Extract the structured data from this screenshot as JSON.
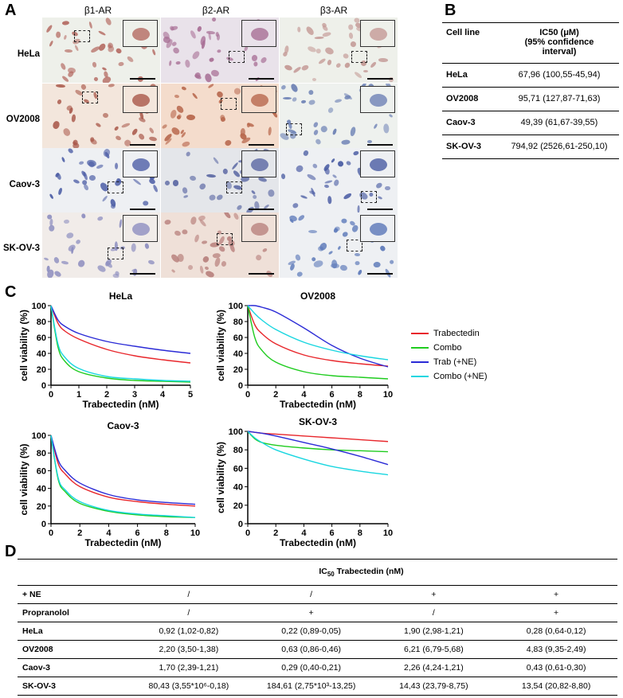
{
  "panelA": {
    "letter": "A",
    "columns": [
      "β1-AR",
      "β2-AR",
      "β3-AR"
    ],
    "rows": [
      "HeLa",
      "OV2008",
      "Caov-3",
      "SK-OV-3"
    ]
  },
  "panelB": {
    "letter": "B",
    "header": {
      "col1": "Cell line",
      "col2_line1": "IC50 (μM)",
      "col2_line2": "(95% confidence",
      "col2_line3": "interval)"
    },
    "rows": [
      {
        "cell": "HeLa",
        "value": "67,96 (100,55-45,94)"
      },
      {
        "cell": "OV2008",
        "value": "95,71 (127,87-71,63)"
      },
      {
        "cell": "Caov-3",
        "value": "49,39 (61,67-39,55)"
      },
      {
        "cell": "SK-OV-3",
        "value": "794,92 (2526,61-250,10)"
      }
    ]
  },
  "panelC": {
    "letter": "C",
    "legend": [
      {
        "label": "Trabectedin",
        "color": "#e8262b"
      },
      {
        "label": "Combo",
        "color": "#1fcc1f"
      },
      {
        "label": "Trab (+NE)",
        "color": "#2b2bd6"
      },
      {
        "label": "Combo (+NE)",
        "color": "#19d6e0"
      }
    ]
  },
  "chart_data": [
    {
      "type": "line",
      "title": "HeLa",
      "xlabel": "Trabectedin (nM)",
      "ylabel": "cell viability (%)",
      "xlim": [
        0,
        5
      ],
      "ylim": [
        0,
        100
      ],
      "xticks": [
        0,
        1,
        2,
        3,
        4,
        5
      ],
      "yticks": [
        0,
        20,
        40,
        60,
        80,
        100
      ],
      "series": [
        {
          "name": "Trabectedin",
          "x": [
            0,
            0.25,
            0.5,
            1,
            2,
            3,
            4,
            5
          ],
          "values": [
            100,
            78,
            68,
            58,
            45,
            37,
            32,
            28
          ]
        },
        {
          "name": "Combo",
          "x": [
            0,
            0.25,
            0.5,
            1,
            2,
            3,
            4,
            5
          ],
          "values": [
            100,
            48,
            30,
            17,
            9,
            6,
            5,
            4
          ]
        },
        {
          "name": "Trab (+NE)",
          "x": [
            0,
            0.25,
            0.5,
            1,
            2,
            3,
            4,
            5
          ],
          "values": [
            100,
            82,
            74,
            65,
            55,
            49,
            44,
            40
          ]
        },
        {
          "name": "Combo (+NE)",
          "x": [
            0,
            0.25,
            0.5,
            1,
            2,
            3,
            4,
            5
          ],
          "values": [
            100,
            52,
            35,
            21,
            11,
            8,
            6,
            5
          ]
        }
      ]
    },
    {
      "type": "line",
      "title": "OV2008",
      "xlabel": "Trabectedin (nM)",
      "ylabel": "cell viability (%)",
      "xlim": [
        0,
        10
      ],
      "ylim": [
        0,
        100
      ],
      "xticks": [
        0,
        2,
        4,
        6,
        8,
        10
      ],
      "yticks": [
        0,
        20,
        40,
        60,
        80,
        100
      ],
      "series": [
        {
          "name": "Trabectedin",
          "x": [
            0,
            0.5,
            1,
            2,
            4,
            6,
            8,
            10
          ],
          "values": [
            100,
            76,
            65,
            52,
            38,
            31,
            27,
            24
          ]
        },
        {
          "name": "Combo",
          "x": [
            0,
            0.5,
            1,
            2,
            4,
            6,
            8,
            10
          ],
          "values": [
            100,
            60,
            44,
            29,
            17,
            12,
            10,
            8
          ]
        },
        {
          "name": "Trab (+NE)",
          "x": [
            0,
            0.5,
            1,
            2,
            4,
            6,
            8,
            10
          ],
          "values": [
            100,
            100,
            98,
            92,
            72,
            50,
            34,
            23
          ]
        },
        {
          "name": "Combo (+NE)",
          "x": [
            0,
            0.5,
            1,
            2,
            4,
            6,
            8,
            10
          ],
          "values": [
            100,
            90,
            82,
            70,
            54,
            44,
            37,
            32
          ]
        }
      ]
    },
    {
      "type": "line",
      "title": "Caov-3",
      "xlabel": "Trabectedin (nM)",
      "ylabel": "cell viability (%)",
      "xlim": [
        0,
        10
      ],
      "ylim": [
        0,
        100
      ],
      "xticks": [
        0,
        2,
        4,
        6,
        8,
        10
      ],
      "yticks": [
        0,
        20,
        40,
        60,
        80,
        100
      ],
      "series": [
        {
          "name": "Trabectedin",
          "x": [
            0,
            0.5,
            1,
            2,
            4,
            6,
            8,
            10
          ],
          "values": [
            100,
            68,
            56,
            42,
            30,
            25,
            22,
            20
          ]
        },
        {
          "name": "Combo",
          "x": [
            0,
            0.5,
            1,
            2,
            4,
            6,
            8,
            10
          ],
          "values": [
            100,
            50,
            36,
            23,
            14,
            10,
            8,
            7
          ]
        },
        {
          "name": "Trab (+NE)",
          "x": [
            0,
            0.5,
            1,
            2,
            4,
            6,
            8,
            10
          ],
          "values": [
            100,
            72,
            60,
            46,
            33,
            27,
            24,
            22
          ]
        },
        {
          "name": "Combo (+NE)",
          "x": [
            0,
            0.5,
            1,
            2,
            4,
            6,
            8,
            10
          ],
          "values": [
            100,
            52,
            38,
            25,
            15,
            11,
            9,
            7
          ]
        }
      ]
    },
    {
      "type": "line",
      "title": "SK-OV-3",
      "xlabel": "Trabectedin (nM)",
      "ylabel": "cell viability (%)",
      "xlim": [
        0,
        10
      ],
      "ylim": [
        0,
        100
      ],
      "xticks": [
        0,
        2,
        4,
        6,
        8,
        10
      ],
      "yticks": [
        0,
        20,
        40,
        60,
        80,
        100
      ],
      "series": [
        {
          "name": "Trabectedin",
          "x": [
            0,
            0.5,
            1,
            2,
            4,
            6,
            8,
            10
          ],
          "values": [
            100,
            99,
            98,
            97,
            95,
            93,
            91,
            89
          ]
        },
        {
          "name": "Combo",
          "x": [
            0,
            0.5,
            1,
            2,
            4,
            6,
            8,
            10
          ],
          "values": [
            100,
            92,
            88,
            85,
            82,
            80,
            79,
            78
          ]
        },
        {
          "name": "Trab (+NE)",
          "x": [
            0,
            0.5,
            1,
            2,
            4,
            6,
            8,
            10
          ],
          "values": [
            100,
            99,
            98,
            95,
            88,
            81,
            73,
            64
          ]
        },
        {
          "name": "Combo (+NE)",
          "x": [
            0,
            0.5,
            1,
            2,
            4,
            6,
            8,
            10
          ],
          "values": [
            100,
            93,
            88,
            80,
            70,
            62,
            57,
            53
          ]
        }
      ]
    }
  ],
  "panelD": {
    "letter": "D",
    "title": "IC50 Trabectedin (nM)",
    "rows": [
      {
        "label": "+ NE",
        "cells": [
          "/",
          "/",
          "+",
          "+"
        ]
      },
      {
        "label": "Propranolol",
        "cells": [
          "/",
          "+",
          "/",
          "+"
        ]
      },
      {
        "label": "HeLa",
        "cells": [
          "0,92 (1,02-0,82)",
          "0,22 (0,89-0,05)",
          "1,90 (2,98-1,21)",
          "0,28 (0,64-0,12)"
        ]
      },
      {
        "label": "OV2008",
        "cells": [
          "2,20 (3,50-1,38)",
          "0,63 (0,86-0,46)",
          "6,21 (6,79-5,68)",
          "4,83 (9,35-2,49)"
        ]
      },
      {
        "label": "Caov-3",
        "cells": [
          "1,70 (2,39-1,21)",
          "0,29 (0,40-0,21)",
          "2,26 (4,24-1,21)",
          "0,43 (0,61-0,30)"
        ]
      },
      {
        "label": "SK-OV-3",
        "cells": [
          "80,43 (3,55*10⁶-0,18)",
          "184,61 (2,75*10³-13,25)",
          "14,43 (23,79-8,75)",
          "13,54 (20,82-8,80)"
        ]
      }
    ]
  }
}
